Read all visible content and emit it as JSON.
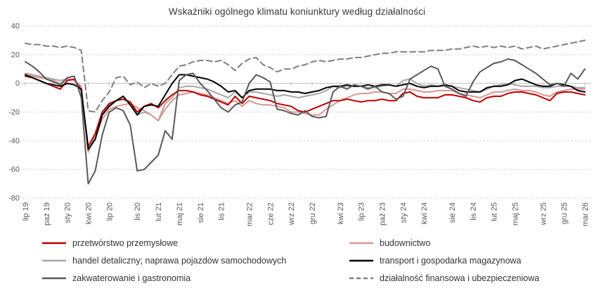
{
  "title": "Wskaźniki ogólnego klimatu koniunktury według działalności",
  "colors": {
    "background": "#ffffff",
    "gridline": "#d9d9d9",
    "zero_axis": "#bfbfbf",
    "axis_text": "#595959",
    "title_text": "#383838",
    "legend_text": "#333333"
  },
  "chart_data": {
    "type": "line",
    "title": "Wskaźniki ogólnego klimatu koniunktury według działalności",
    "xlabel": "",
    "ylabel": "",
    "ylim": [
      -80,
      40
    ],
    "y_ticks": [
      40,
      20,
      0,
      -20,
      -40,
      -60,
      -80
    ],
    "grid": "horizontal-dashed, solid axis at 0",
    "legend_position": "bottom, two columns",
    "x": [
      "lip 19",
      "sie 19",
      "wrz 19",
      "paź 19",
      "lis 19",
      "gru 19",
      "sty 20",
      "lut 20",
      "mar 20",
      "kwi 20",
      "maj 20",
      "cze 20",
      "lip 20",
      "sie 20",
      "wrz 20",
      "paź 20",
      "lis 20",
      "gru 20",
      "sty 21",
      "lut 21",
      "mar 21",
      "kwi 21",
      "maj 21",
      "cze 21",
      "lip 21",
      "sie 21",
      "wrz 21",
      "paź 21",
      "lis 21",
      "gru 21",
      "sty 22",
      "lut 22",
      "mar 22",
      "kwi 22",
      "maj 22",
      "cze 22",
      "lip 22",
      "sie 22",
      "wrz 22",
      "paź 22",
      "lis 22",
      "gru 22",
      "sty 23",
      "lut 23",
      "mar 23",
      "kwi 23",
      "maj 23",
      "cze 23",
      "lip 23",
      "sie 23",
      "wrz 23",
      "paź 23",
      "lis 23",
      "gru 23",
      "sty 24",
      "lut 24",
      "mar 24",
      "kwi 24",
      "maj 24",
      "cze 24",
      "lip 24",
      "sie 24",
      "wrz 24",
      "paź 24",
      "lis 24",
      "gru 24",
      "sty 25",
      "lut 25",
      "mar 25",
      "kwi 25",
      "maj 25",
      "cze 25",
      "lip 25",
      "sie 25",
      "wrz 25",
      "paź 25",
      "lis 25",
      "gru 25",
      "sty 26",
      "lut 26",
      "mar 26"
    ],
    "x_tick_indices": [
      0,
      3,
      6,
      9,
      12,
      16,
      19,
      22,
      25,
      28,
      32,
      35,
      38,
      41,
      45,
      48,
      51,
      54,
      57,
      61,
      64,
      67,
      70,
      74,
      77,
      80
    ],
    "x_tick_labels": [
      "lip 19",
      "paź 19",
      "sty 20",
      "kwi 20",
      "lip 20",
      "lis 20",
      "lut 21",
      "maj 21",
      "sie 21",
      "lis 21",
      "mar 22",
      "cze 22",
      "wrz 22",
      "gru 22",
      "kwi 23",
      "lip 23",
      "paź 23",
      "sty 24",
      "kwi 24",
      "sie 24",
      "lis 24",
      "lut 25",
      "maj 25",
      "wrz 25",
      "gru 25",
      "mar 26"
    ],
    "series": [
      {
        "name": "przetwórstwo przemysłowe",
        "color": "#c00000",
        "dash": false,
        "values": [
          5,
          4,
          2,
          0,
          -2,
          -4,
          2,
          3,
          -5,
          -44,
          -35,
          -20,
          -14,
          -12,
          -11,
          -13,
          -20,
          -16,
          -14,
          -17,
          -12,
          -8,
          -5,
          -5,
          -6,
          -8,
          -9,
          -11,
          -13,
          -15,
          -9,
          -14,
          -9,
          -10,
          -11,
          -12,
          -14,
          -15,
          -16,
          -19,
          -20,
          -18,
          -16,
          -14,
          -12,
          -12,
          -11,
          -12,
          -13,
          -12,
          -12,
          -11,
          -12,
          -12,
          -7,
          -6,
          -9,
          -10,
          -10,
          -10,
          -8,
          -8,
          -9,
          -10,
          -12,
          -13,
          -10,
          -9,
          -9,
          -7,
          -6,
          -6,
          -7,
          -8,
          -10,
          -12,
          -7,
          -6,
          -6,
          -7,
          -8
        ]
      },
      {
        "name": "budownictwo",
        "color": "#d99694",
        "dash": false,
        "values": [
          6,
          5,
          4,
          3,
          2,
          0,
          3,
          2,
          -2,
          -47,
          -38,
          -25,
          -18,
          -16,
          -15,
          -14,
          -17,
          -19,
          -22,
          -26,
          -18,
          -12,
          -8,
          -7,
          -6,
          -7,
          -8,
          -10,
          -12,
          -14,
          -12,
          -16,
          -12,
          -14,
          -15,
          -15,
          -16,
          -17,
          -20,
          -20,
          -21,
          -22,
          -22,
          -18,
          -15,
          -12,
          -10,
          -8,
          -7,
          -7,
          -6,
          -6,
          -7,
          -7,
          -4,
          -4,
          -5,
          -6,
          -6,
          -5,
          -5,
          -5,
          -7,
          -8,
          -9,
          -10,
          -8,
          -6,
          -6,
          -5,
          -4,
          -5,
          -5,
          -6,
          -8,
          -9,
          -6,
          -5,
          -4,
          -4,
          -4
        ]
      },
      {
        "name": "handel detaliczny; naprawa pojazdów samochodowych",
        "color": "#a6a6a6",
        "dash": false,
        "values": [
          7,
          6,
          5,
          4,
          3,
          2,
          3,
          2,
          -3,
          -48,
          -35,
          -22,
          -15,
          -12,
          -11,
          -13,
          -22,
          -20,
          -22,
          -26,
          -14,
          -10,
          -3,
          -2,
          -2,
          -3,
          -4,
          -6,
          -8,
          -10,
          -6,
          -10,
          -6,
          -6,
          -7,
          -8,
          -9,
          -8,
          -9,
          -10,
          -9,
          -8,
          -7,
          -5,
          -2,
          -3,
          -2,
          -2,
          -2,
          -3,
          -3,
          -2,
          -1,
          -2,
          2,
          3,
          0,
          -2,
          -1,
          -2,
          -2,
          -2,
          -3,
          -4,
          -5,
          -6,
          -4,
          -2,
          -1,
          0,
          -1,
          -2,
          -2,
          -2,
          -3,
          -3,
          -2,
          -2,
          -2,
          -3,
          -3
        ]
      },
      {
        "name": "transport i gospodarka magazynowa",
        "color": "#000000",
        "dash": false,
        "values": [
          6,
          4,
          2,
          0,
          -1,
          -2,
          0,
          -1,
          -4,
          -46,
          -39,
          -22,
          -16,
          -12,
          -9,
          -15,
          -22,
          -16,
          -15,
          -16,
          -8,
          0,
          6,
          6,
          5,
          4,
          3,
          1,
          -2,
          -6,
          -5,
          -10,
          -5,
          -4,
          -4,
          -4,
          -5,
          -5,
          -6,
          -6,
          -7,
          -6,
          -5,
          -3,
          -2,
          -2,
          -1,
          -2,
          -2,
          -1,
          -2,
          -1,
          -1,
          -2,
          -1,
          0,
          -2,
          -3,
          -2,
          -2,
          -1,
          -2,
          -5,
          -6,
          -6,
          -6,
          -3,
          -2,
          -2,
          -1,
          2,
          3,
          1,
          -1,
          -2,
          -2,
          0,
          -1,
          -2,
          -5,
          -6
        ]
      },
      {
        "name": "zakwaterowanie i gastronomia",
        "color": "#595959",
        "dash": false,
        "values": [
          15,
          12,
          8,
          3,
          1,
          -1,
          4,
          5,
          -10,
          -70,
          -61,
          -36,
          -20,
          -17,
          -19,
          -29,
          -61,
          -60,
          -55,
          -50,
          -33,
          -39,
          2,
          6,
          7,
          0,
          -5,
          -11,
          -17,
          -20,
          -15,
          -13,
          0,
          6,
          4,
          1,
          -18,
          -19,
          -21,
          -22,
          -19,
          -23,
          -24,
          -23,
          -6,
          -2,
          -4,
          -1,
          -2,
          -4,
          -2,
          -6,
          -7,
          -11,
          -9,
          3,
          6,
          9,
          12,
          10,
          -2,
          -4,
          -7,
          -9,
          1,
          8,
          11,
          14,
          15,
          17,
          16,
          13,
          10,
          7,
          3,
          -1,
          0,
          -2,
          7,
          3,
          10
        ]
      },
      {
        "name": "działalność finansowa i ubezpieczeniowa",
        "color": "#7f7f7f",
        "dash": true,
        "values": [
          28,
          27,
          27,
          26,
          26,
          25,
          26,
          25,
          23,
          -19,
          -20,
          -12,
          -6,
          4,
          5,
          -1,
          1,
          -3,
          0,
          -2,
          0,
          6,
          12,
          13,
          15,
          16,
          16,
          15,
          16,
          13,
          9,
          14,
          17,
          18,
          13,
          11,
          8,
          10,
          10,
          12,
          13,
          15,
          16,
          15,
          16,
          17,
          17,
          18,
          18,
          19,
          20,
          21,
          21,
          22,
          22,
          22,
          22,
          22,
          23,
          23,
          23,
          24,
          24,
          25,
          26,
          25,
          26,
          25,
          26,
          25,
          26,
          24,
          25,
          26,
          24,
          25,
          26,
          27,
          28,
          29,
          30
        ]
      }
    ],
    "draw_order": [
      2,
      1,
      0,
      3,
      5,
      4
    ],
    "legend_rows": [
      [
        "przetwórstwo przemysłowe",
        "budownictwo"
      ],
      [
        "handel detaliczny; naprawa pojazdów samochodowych",
        "transport i gospodarka magazynowa"
      ],
      [
        "zakwaterowanie i gastronomia",
        "działalność finansowa i ubezpieczeniowa"
      ]
    ]
  }
}
